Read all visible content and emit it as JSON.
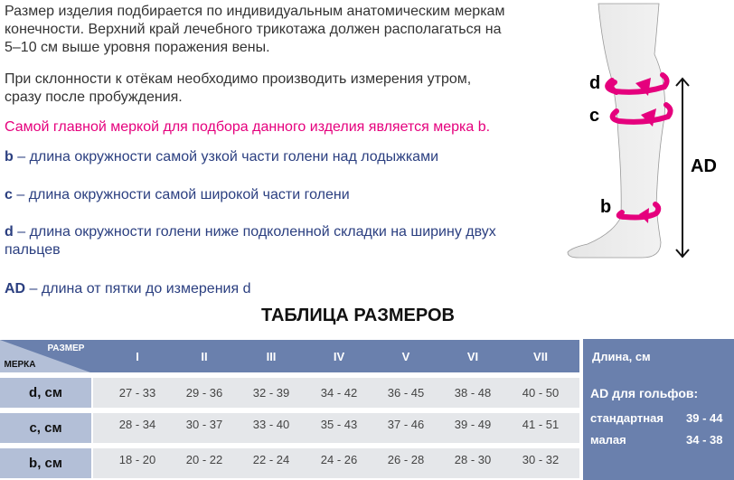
{
  "intro": {
    "p1": "Размер изделия подбирается по индивидуальным анатомическим меркам конечности. Верхний край лечебного трикотажа должен располагаться на 5–10 см выше уровня поражения вены.",
    "p2": "При склонности к отёкам необходимо производить измерения утром, сразу после пробуждения.",
    "highlight": "Самой главной меркой для подбора данного изделия является мерка b.",
    "defs": [
      {
        "key": "b",
        "text": " – длина окружности самой узкой части голени над лодыжками"
      },
      {
        "key": "c",
        "text": " – длина окружности самой широкой части голени"
      },
      {
        "key": "d",
        "text": " – длина окружности голени ниже подколенной складки на ширину двух пальцев"
      },
      {
        "key": "AD",
        "text": " – длина от пятки до измерения d"
      }
    ]
  },
  "diagram": {
    "labels": [
      "d",
      "c",
      "b",
      "AD"
    ],
    "accent": "#e5007d"
  },
  "table": {
    "title": "ТАБЛИЦА РАЗМЕРОВ",
    "corner_size": "РАЗМЕР",
    "corner_measure": "МЕРКА",
    "sizes": [
      "I",
      "II",
      "III",
      "IV",
      "V",
      "VI",
      "VII"
    ],
    "rows": [
      {
        "label": "d, см",
        "values": [
          "27 - 33",
          "29 - 36",
          "32 - 39",
          "34 - 42",
          "36 - 45",
          "38 - 48",
          "40 - 50"
        ]
      },
      {
        "label": "c, см",
        "values": [
          "28 - 34",
          "30 - 37",
          "33 - 40",
          "35 - 43",
          "37 - 46",
          "39 - 49",
          "41 - 51"
        ]
      },
      {
        "label": "b, см",
        "values": [
          "18 - 20",
          "20 - 22",
          "22 - 24",
          "24 - 26",
          "26 - 28",
          "28 - 30",
          "30 - 32"
        ]
      }
    ]
  },
  "side": {
    "title": "Длина, см",
    "ad": "AD для гольфов:",
    "std_label": "стандартная",
    "std_value": "39 - 44",
    "small_label": "малая",
    "small_value": "34 - 38"
  },
  "colors": {
    "header": "#6a80ad",
    "label_col": "#b3bfd7",
    "cell": "#e5e7ea",
    "text_blue": "#2b3f80"
  }
}
